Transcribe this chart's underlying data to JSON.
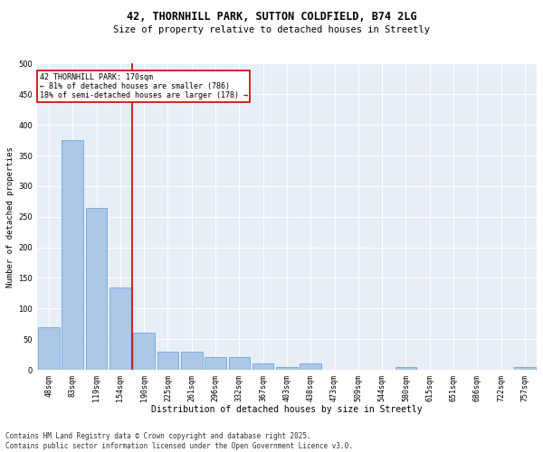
{
  "title_line1": "42, THORNHILL PARK, SUTTON COLDFIELD, B74 2LG",
  "title_line2": "Size of property relative to detached houses in Streetly",
  "xlabel": "Distribution of detached houses by size in Streetly",
  "ylabel": "Number of detached properties",
  "categories": [
    "48sqm",
    "83sqm",
    "119sqm",
    "154sqm",
    "190sqm",
    "225sqm",
    "261sqm",
    "296sqm",
    "332sqm",
    "367sqm",
    "403sqm",
    "438sqm",
    "473sqm",
    "509sqm",
    "544sqm",
    "580sqm",
    "615sqm",
    "651sqm",
    "686sqm",
    "722sqm",
    "757sqm"
  ],
  "values": [
    70,
    375,
    265,
    135,
    60,
    30,
    30,
    20,
    20,
    10,
    5,
    10,
    0,
    0,
    0,
    5,
    0,
    0,
    0,
    0,
    5
  ],
  "bar_color": "#aec6e8",
  "bar_edgecolor": "#5a9fd4",
  "vline_x": 3.5,
  "vline_color": "#cc0000",
  "annotation_text": "42 THORNHILL PARK: 170sqm\n← 81% of detached houses are smaller (786)\n18% of semi-detached houses are larger (178) →",
  "annotation_box_color": "#cc0000",
  "annotation_fontsize": 6.0,
  "ylim": [
    0,
    500
  ],
  "yticks": [
    0,
    50,
    100,
    150,
    200,
    250,
    300,
    350,
    400,
    450,
    500
  ],
  "background_color": "#e8eef6",
  "footer_text": "Contains HM Land Registry data © Crown copyright and database right 2025.\nContains public sector information licensed under the Open Government Licence v3.0.",
  "title_fontsize": 8.5,
  "subtitle_fontsize": 7.5,
  "xlabel_fontsize": 7.0,
  "ylabel_fontsize": 6.5,
  "tick_fontsize": 6.0,
  "footer_fontsize": 5.5
}
